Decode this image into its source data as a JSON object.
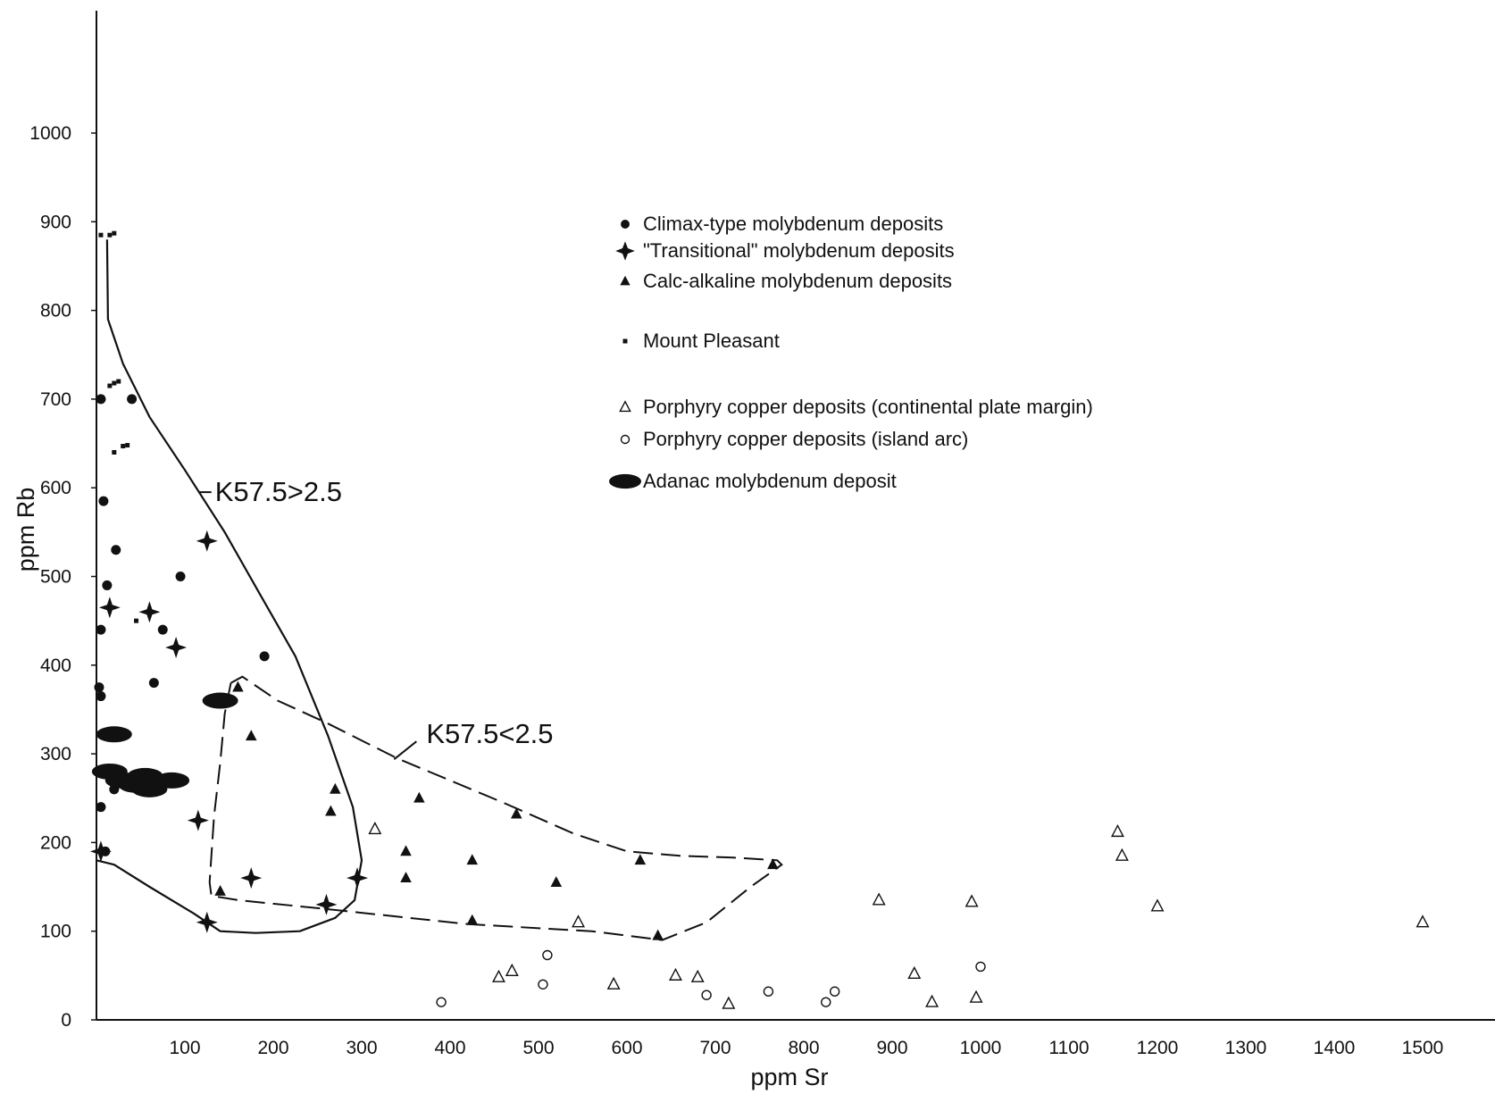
{
  "chart_data": {
    "type": "scatter",
    "xlabel": "ppm Sr",
    "ylabel": "ppm Rb",
    "xlim": [
      0,
      1500
    ],
    "ylim": [
      0,
      1000
    ],
    "x_ticks": [
      100,
      200,
      300,
      400,
      500,
      600,
      700,
      800,
      900,
      1000,
      1100,
      1200,
      1300,
      1400,
      1500
    ],
    "y_ticks": [
      0,
      100,
      200,
      300,
      400,
      500,
      600,
      700,
      800,
      900,
      1000
    ],
    "grid": false,
    "legend_position": "upper-center",
    "legend": [
      {
        "label": "Climax-type molybdenum deposits",
        "marker": "filled-circle"
      },
      {
        "label": "\"Transitional\" molybdenum deposits",
        "marker": "star"
      },
      {
        "label": "Calc-alkaline molybdenum deposits",
        "marker": "filled-triangle"
      },
      {
        "label": "Mount Pleasant",
        "marker": "small-square"
      },
      {
        "label": "Porphyry copper deposits (continental plate margin)",
        "marker": "open-triangle"
      },
      {
        "label": "Porphyry copper deposits (island arc)",
        "marker": "open-circle"
      },
      {
        "label": "Adanac molybdenum deposit",
        "marker": "filled-ellipse"
      }
    ],
    "annotations": [
      {
        "text": "K57.5>2.5",
        "x": 128,
        "y": 585
      },
      {
        "text": "K57.5<2.5",
        "x": 367,
        "y": 312
      }
    ],
    "series": [
      {
        "marker": "filled-circle",
        "points": [
          [
            5,
            700
          ],
          [
            8,
            585
          ],
          [
            12,
            490
          ],
          [
            5,
            440
          ],
          [
            3,
            375
          ],
          [
            5,
            365
          ],
          [
            22,
            530
          ],
          [
            40,
            700
          ],
          [
            95,
            500
          ],
          [
            75,
            440
          ],
          [
            65,
            380
          ],
          [
            190,
            410
          ],
          [
            5,
            240
          ],
          [
            20,
            260
          ],
          [
            10,
            190
          ]
        ]
      },
      {
        "marker": "star",
        "points": [
          [
            15,
            465
          ],
          [
            60,
            460
          ],
          [
            90,
            420
          ],
          [
            125,
            540
          ],
          [
            115,
            225
          ],
          [
            125,
            110
          ],
          [
            175,
            160
          ],
          [
            260,
            130
          ],
          [
            295,
            160
          ],
          [
            5,
            190
          ]
        ]
      },
      {
        "marker": "filled-triangle",
        "points": [
          [
            160,
            375
          ],
          [
            175,
            320
          ],
          [
            140,
            145
          ],
          [
            270,
            260
          ],
          [
            265,
            235
          ],
          [
            365,
            250
          ],
          [
            350,
            190
          ],
          [
            350,
            160
          ],
          [
            425,
            180
          ],
          [
            425,
            112
          ],
          [
            475,
            232
          ],
          [
            520,
            155
          ],
          [
            615,
            180
          ],
          [
            635,
            95
          ],
          [
            765,
            175
          ]
        ]
      },
      {
        "marker": "small-square",
        "points": [
          [
            5,
            885
          ],
          [
            15,
            885
          ],
          [
            20,
            887
          ],
          [
            15,
            715
          ],
          [
            20,
            718
          ],
          [
            25,
            720
          ],
          [
            20,
            640
          ],
          [
            30,
            647
          ],
          [
            35,
            648
          ],
          [
            45,
            450
          ]
        ]
      },
      {
        "marker": "open-triangle",
        "points": [
          [
            315,
            215
          ],
          [
            545,
            110
          ],
          [
            455,
            48
          ],
          [
            470,
            55
          ],
          [
            585,
            40
          ],
          [
            655,
            50
          ],
          [
            680,
            48
          ],
          [
            715,
            18
          ],
          [
            885,
            135
          ],
          [
            925,
            52
          ],
          [
            945,
            20
          ],
          [
            990,
            133
          ],
          [
            995,
            25
          ],
          [
            1155,
            212
          ],
          [
            1160,
            185
          ],
          [
            1200,
            128
          ],
          [
            1500,
            110
          ]
        ]
      },
      {
        "marker": "open-circle",
        "points": [
          [
            390,
            20
          ],
          [
            505,
            40
          ],
          [
            510,
            73
          ],
          [
            690,
            28
          ],
          [
            760,
            32
          ],
          [
            825,
            20
          ],
          [
            835,
            32
          ],
          [
            1000,
            60
          ]
        ]
      },
      {
        "marker": "filled-ellipse",
        "points": [
          [
            20,
            322
          ],
          [
            15,
            280
          ],
          [
            30,
            270
          ],
          [
            45,
            265
          ],
          [
            55,
            275
          ],
          [
            60,
            260
          ],
          [
            85,
            270
          ],
          [
            140,
            360
          ]
        ]
      }
    ]
  }
}
